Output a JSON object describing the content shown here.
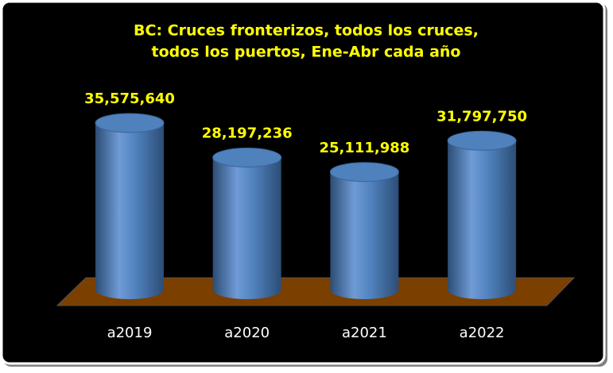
{
  "chart_data": {
    "type": "bar",
    "title": [
      "BC: Cruces fronterizos, todos los cruces,",
      "todos los puertos, Ene-Abr cada año"
    ],
    "categories": [
      "a2019",
      "a2020",
      "a2021",
      "a2022"
    ],
    "values": [
      35575640,
      28197236,
      25111988,
      31797750
    ],
    "value_labels": [
      "35,575,640",
      "28,197,236",
      "25,111,988",
      "31,797,750"
    ],
    "color": "#4f81bd"
  }
}
